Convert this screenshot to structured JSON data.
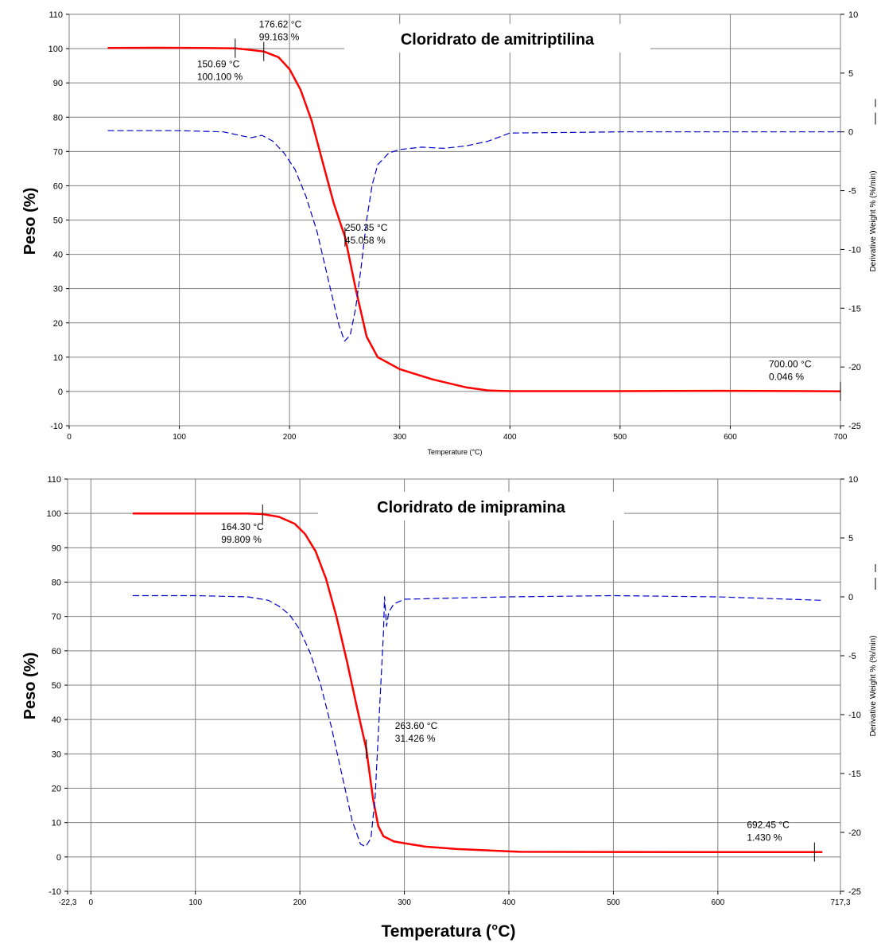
{
  "chart_data": [
    {
      "type": "line",
      "title": "Cloridrato de amitriptilina",
      "xlabel": "Temperature (°C)",
      "ylabel": "Peso (%)",
      "y2label": "Derivative Weight % (%/min)",
      "xlim": [
        0,
        700
      ],
      "ylim": [
        -10,
        110
      ],
      "y2lim": [
        -25,
        10
      ],
      "x_ticks": [
        "0",
        "100",
        "200",
        "300",
        "400",
        "500",
        "600",
        "700"
      ],
      "y_ticks": [
        "-10",
        "0",
        "10",
        "20",
        "30",
        "40",
        "50",
        "60",
        "70",
        "80",
        "90",
        "100",
        "110"
      ],
      "y2_ticks": [
        "-25",
        "-20",
        "-15",
        "-10",
        "-5",
        "0",
        "5",
        "10"
      ],
      "grid": true,
      "series": [
        {
          "axis": "left",
          "color": "#ff0000",
          "style": "solid",
          "x": [
            35,
            80,
            120,
            150.69,
            165,
            176.62,
            190,
            200,
            210,
            220,
            230,
            240,
            250.35,
            260,
            270,
            280,
            300,
            330,
            360,
            380,
            400,
            500,
            600,
            700
          ],
          "y": [
            100.2,
            100.25,
            100.2,
            100.1,
            99.6,
            99.163,
            97.5,
            94,
            88,
            79,
            67,
            55,
            45.058,
            30,
            16,
            10,
            6.5,
            3.5,
            1.2,
            0.3,
            0.1,
            0.1,
            0.2,
            0.046
          ]
        },
        {
          "axis": "right",
          "color": "#0000cc",
          "style": "dashed",
          "x": [
            35,
            100,
            140,
            165,
            175,
            185,
            195,
            205,
            215,
            225,
            235,
            245,
            250,
            255,
            260,
            265,
            270,
            275,
            280,
            290,
            300,
            320,
            340,
            360,
            380,
            400,
            500,
            600,
            700
          ],
          "y": [
            0.1,
            0.1,
            0,
            -0.5,
            -0.3,
            -0.8,
            -1.8,
            -3.2,
            -5.5,
            -8.5,
            -12.5,
            -16.5,
            -17.8,
            -17.3,
            -15,
            -11.5,
            -7.5,
            -4.5,
            -2.8,
            -1.8,
            -1.5,
            -1.3,
            -1.4,
            -1.2,
            -0.8,
            -0.1,
            0,
            0,
            0
          ]
        }
      ],
      "annotations": [
        {
          "x": 150.69,
          "y": 100.1,
          "lines": [
            "150.69 °C",
            "100.100 %"
          ]
        },
        {
          "x": 176.62,
          "y": 99.163,
          "lines": [
            "176.62 °C",
            "99.163 %"
          ]
        },
        {
          "x": 250.35,
          "y": 45.058,
          "lines": [
            "250.35 °C",
            "45.058 %"
          ]
        },
        {
          "x": 700.0,
          "y": 0.046,
          "lines": [
            "700.00 °C",
            "0.046 %"
          ]
        }
      ]
    },
    {
      "type": "line",
      "title": "Cloridrato de imipramina",
      "xlabel": "Temperatura (°C)",
      "ylabel": "Peso (%)",
      "y2label": "Derivative Weight % (%/min)",
      "xlim": [
        -22.3,
        717.3
      ],
      "ylim": [
        -10,
        110
      ],
      "y2lim": [
        -25,
        10
      ],
      "x_ticks": [
        "-22,3",
        "0",
        "100",
        "200",
        "300",
        "400",
        "500",
        "600",
        "717,3"
      ],
      "y_ticks": [
        "-10",
        "0",
        "10",
        "20",
        "30",
        "40",
        "50",
        "60",
        "70",
        "80",
        "90",
        "100",
        "110"
      ],
      "y2_ticks": [
        "-25",
        "-20",
        "-15",
        "-10",
        "-5",
        "0",
        "5",
        "10"
      ],
      "grid": true,
      "series": [
        {
          "axis": "left",
          "color": "#ff0000",
          "style": "solid",
          "x": [
            40,
            100,
            150,
            164.3,
            180,
            195,
            205,
            215,
            225,
            235,
            245,
            255,
            263.6,
            270,
            275,
            280,
            290,
            300,
            320,
            350,
            380,
            410,
            500,
            600,
            692.45,
            700
          ],
          "y": [
            100,
            100,
            100,
            99.809,
            99,
            97,
            94,
            89,
            81,
            70,
            57,
            43,
            31.426,
            17,
            9,
            6,
            4.5,
            4,
            3,
            2.3,
            1.9,
            1.5,
            1.45,
            1.43,
            1.43,
            1.43
          ]
        },
        {
          "axis": "right",
          "color": "#0000cc",
          "style": "dashed",
          "x": [
            40,
            100,
            150,
            170,
            180,
            190,
            200,
            210,
            220,
            230,
            240,
            250,
            258,
            263,
            268,
            272,
            276,
            280,
            281,
            283,
            285,
            290,
            300,
            400,
            500,
            600,
            700
          ],
          "y": [
            0.1,
            0.1,
            0,
            -0.3,
            -0.8,
            -1.5,
            -2.8,
            -4.8,
            -7.5,
            -11,
            -15,
            -19,
            -21,
            -21.2,
            -20.5,
            -17,
            -10,
            -3,
            0,
            -2.5,
            -1.3,
            -0.6,
            -0.2,
            0,
            0.1,
            0,
            -0.3
          ]
        }
      ],
      "annotations": [
        {
          "x": 164.3,
          "y": 99.809,
          "lines": [
            "164.30 °C",
            "99.809 %"
          ]
        },
        {
          "x": 263.6,
          "y": 31.426,
          "lines": [
            "263.60 °C",
            "31.426 %"
          ]
        },
        {
          "x": 692.45,
          "y": 1.43,
          "lines": [
            "692.45 °C",
            "1.430 %"
          ]
        }
      ]
    }
  ]
}
